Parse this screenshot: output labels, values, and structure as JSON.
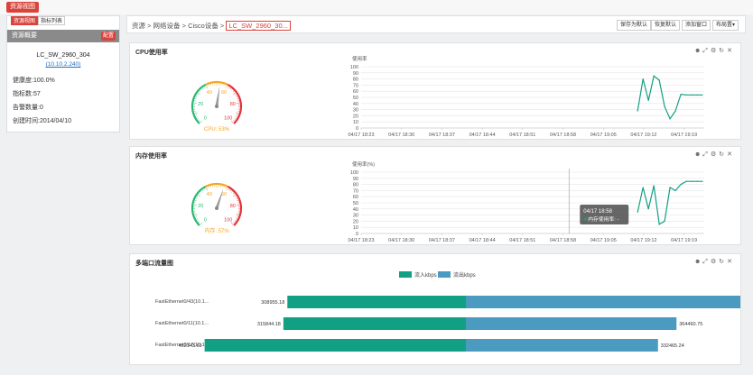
{
  "top_tab": "资源视图",
  "sidebar": {
    "tabs": [
      "资源视图",
      "指标列表"
    ],
    "header": "资源概要",
    "badge": "配置",
    "device_name": "LC_SW_2960_304",
    "device_ip": "(10.10.2.240)",
    "health": "健康度:100.0%",
    "metric_count": "指标数:57",
    "alarm_count": "告警数量:0",
    "created": "创建时间:2014/04/10"
  },
  "breadcrumb": {
    "path": "资源 > 网络设备 > Cisco设备 > ",
    "current": "LC_SW_2960_30..."
  },
  "toolbar": {
    "save_label": "保存为默认",
    "restore_label": "恢复默认",
    "add_window_label": "添加窗口",
    "layout_label": "布局置▾"
  },
  "colors": {
    "accent": "#d9433b",
    "green": "#12a085",
    "blue": "#4a9bbf",
    "gauge_green": "#2bb673",
    "gauge_orange": "#f4a524",
    "gauge_red": "#e2333a"
  },
  "panel_icons": [
    "gear-icon",
    "expand-icon",
    "settings-icon",
    "refresh-icon",
    "close-icon"
  ],
  "panel_icon_glyphs": [
    "☻",
    "⤢",
    "⚙",
    "↻",
    "✕"
  ],
  "cpu_panel": {
    "title": "CPU使用率",
    "gauge": {
      "ticks": [
        "0",
        "20",
        "40",
        "60",
        "80",
        "100"
      ],
      "label": "CPU: 53%",
      "value": 53
    },
    "chart": {
      "ylabel": "使用率",
      "y_ticks": [
        "100",
        "90",
        "80",
        "70",
        "60",
        "50",
        "40",
        "30",
        "20",
        "10",
        "0"
      ],
      "x_ticks": [
        "04/17 18:23",
        "04/17 18:30",
        "04/17 18:37",
        "04/17 18:44",
        "04/17 18:51",
        "04/17 18:58",
        "04/17 19:05",
        "04/17 19:12",
        "04/17 19:19"
      ]
    }
  },
  "mem_panel": {
    "title": "内存使用率",
    "gauge": {
      "ticks": [
        "0",
        "20",
        "40",
        "60",
        "80",
        "100"
      ],
      "label": "内存: 57%",
      "value": 57
    },
    "chart": {
      "ylabel": "使用率(%)",
      "y_ticks": [
        "100",
        "90",
        "80",
        "70",
        "60",
        "50",
        "40",
        "30",
        "20",
        "10",
        "0"
      ],
      "x_ticks": [
        "04/17 18:23",
        "04/17 18:30",
        "04/17 18:37",
        "04/17 18:44",
        "04/17 18:51",
        "04/17 18:58",
        "04/17 19:05",
        "04/17 19:12",
        "04/17 19:19"
      ],
      "tooltip_time": "04/17 18:58",
      "tooltip_series": "内存使用率: -"
    }
  },
  "port_panel": {
    "title": "多端口流量图",
    "legend": [
      "流入kbps",
      "流出kbps"
    ]
  },
  "chart_data": [
    {
      "type": "line",
      "title": "CPU使用率",
      "ylabel": "使用率",
      "ylim": [
        0,
        100
      ],
      "x": [
        "19:08",
        "19:09",
        "19:10",
        "19:11",
        "19:12",
        "19:13",
        "19:14",
        "19:15",
        "19:16",
        "19:17",
        "19:18",
        "19:19",
        "19:20"
      ],
      "series": [
        {
          "values": [
            28,
            80,
            45,
            85,
            78,
            35,
            15,
            28,
            55,
            54,
            54,
            54,
            54
          ]
        }
      ]
    },
    {
      "type": "line",
      "title": "内存使用率",
      "ylabel": "使用率(%)",
      "ylim": [
        0,
        100
      ],
      "x": [
        "19:08",
        "19:09",
        "19:10",
        "19:11",
        "19:12",
        "19:13",
        "19:14",
        "19:15",
        "19:16",
        "19:17",
        "19:18",
        "19:19",
        "19:20"
      ],
      "series": [
        {
          "values": [
            35,
            75,
            40,
            78,
            15,
            20,
            75,
            70,
            80,
            85,
            85,
            85,
            85
          ]
        }
      ]
    },
    {
      "type": "bar",
      "title": "多端口流量图",
      "categories": [
        "FastEthernet0/43(10.1...",
        "FastEthernet0/11(10.1...",
        "FastEthernet0/17(10.1..."
      ],
      "series": [
        {
          "name": "流入kbps",
          "values": [
            308955.18,
            315844.18,
            452143.63
          ]
        },
        {
          "name": "流出kbps",
          "values": [
            583835.15,
            364460.75,
            332465.24
          ]
        }
      ]
    }
  ]
}
